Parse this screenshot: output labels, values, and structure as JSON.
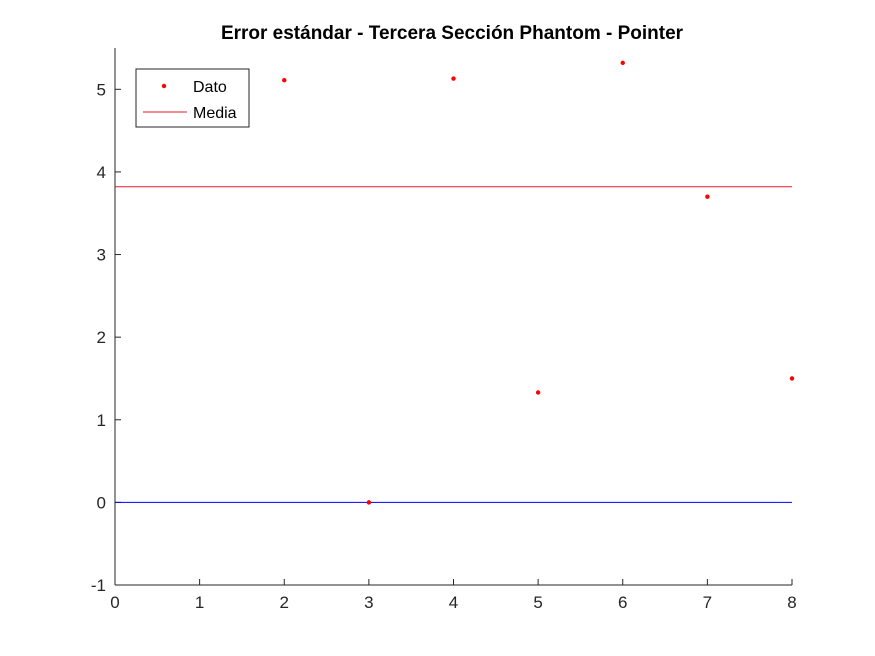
{
  "chart_data": {
    "type": "scatter",
    "title": "Error estándar - Tercera Sección Phantom - Pointer",
    "xlabel": "",
    "ylabel": "",
    "xlim": [
      0,
      8
    ],
    "ylim": [
      -1,
      5.5
    ],
    "xticks": [
      0,
      1,
      2,
      3,
      4,
      5,
      6,
      7,
      8
    ],
    "yticks": [
      -1,
      0,
      1,
      2,
      3,
      4,
      5
    ],
    "xtick_labels": [
      "0",
      "1",
      "2",
      "3",
      "4",
      "5",
      "6",
      "7",
      "8"
    ],
    "ytick_labels": [
      "-1",
      "0",
      "1",
      "2",
      "3",
      "4",
      "5"
    ],
    "grid": false,
    "legend_position": "top-left",
    "series": [
      {
        "name": "Dato",
        "kind": "markers",
        "color": "#ff0000",
        "x": [
          2,
          3,
          4,
          5,
          6,
          7,
          8
        ],
        "y": [
          5.11,
          0.0,
          5.13,
          1.33,
          5.32,
          3.7,
          1.5
        ]
      },
      {
        "name": "Media",
        "kind": "hline",
        "color": "#e8182e",
        "y": 3.82
      }
    ],
    "reference_lines": [
      {
        "kind": "hline",
        "color": "#0000ff",
        "y": 0
      }
    ]
  }
}
